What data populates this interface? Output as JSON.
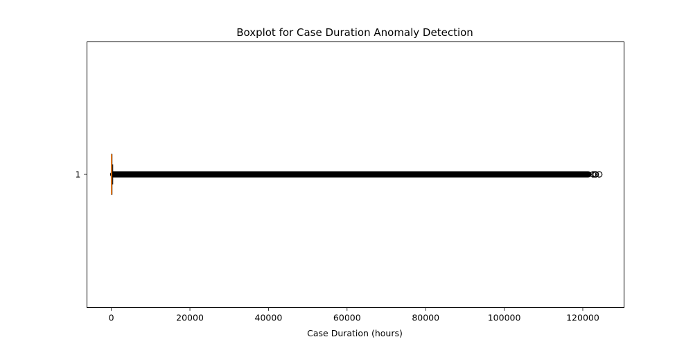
{
  "chart_data": {
    "type": "boxplot",
    "title": "Boxplot for Case Duration Anomaly Detection",
    "xlabel": "Case Duration (hours)",
    "ylabel": "",
    "orientation": "horizontal",
    "xlim": [
      -6200,
      130500
    ],
    "x_ticks": [
      0,
      20000,
      40000,
      60000,
      80000,
      100000,
      120000
    ],
    "x_tick_labels": [
      "0",
      "20000",
      "40000",
      "60000",
      "80000",
      "100000",
      "120000"
    ],
    "y_ticks": [
      "1"
    ],
    "grid": false,
    "series": [
      {
        "category": "1",
        "whisker_low": 0,
        "q1": 10,
        "median": 50,
        "q3": 150,
        "whisker_high": 370,
        "outliers_dense_range": [
          400,
          121500
        ],
        "outliers_sparse": [
          122600,
          123000,
          123300,
          124200
        ]
      }
    ],
    "colors": {
      "box": "#000000",
      "median": "#ff7f0e",
      "outlier_edge": "#000000"
    }
  }
}
